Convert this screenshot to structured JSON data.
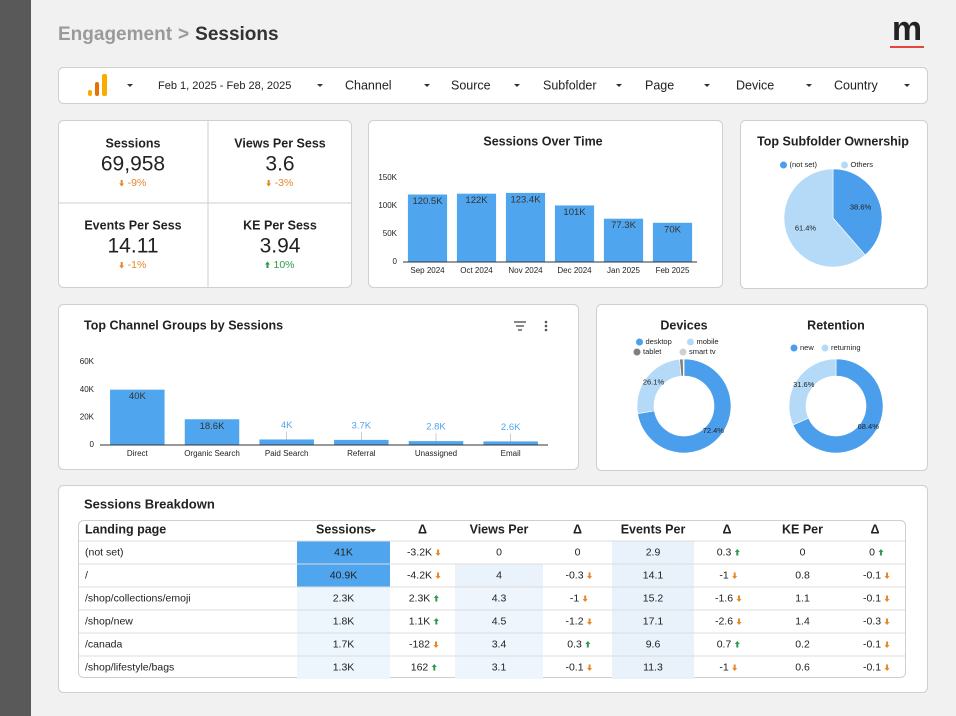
{
  "header": {
    "breadcrumb": [
      "Engagement",
      "Sessions"
    ],
    "separator": ">",
    "logo": "m"
  },
  "filters": [
    "Feb 1, 2025 - Feb 28, 2025",
    "Channel",
    "Source",
    "Subfolder",
    "Page",
    "Device",
    "Country"
  ],
  "kpis": [
    {
      "label": "Sessions",
      "value": "69,958",
      "change": "-9%",
      "trend": "down"
    },
    {
      "label": "Views Per Sess",
      "value": "3.6",
      "change": "-3%",
      "trend": "down"
    },
    {
      "label": "Events Per Sess",
      "value": "14.11",
      "change": "-1%",
      "trend": "down"
    },
    {
      "label": "KE Per Sess",
      "value": "3.94",
      "change": "10%",
      "trend": "up"
    }
  ],
  "chart_data": [
    {
      "type": "bar",
      "title": "Sessions Over Time",
      "categories": [
        "Sep 2024",
        "Oct 2024",
        "Nov 2024",
        "Dec 2024",
        "Jan 2025",
        "Feb 2025"
      ],
      "values": [
        120500,
        122000,
        123400,
        101000,
        77300,
        70000
      ],
      "value_labels": [
        "120.5K",
        "122K",
        "123.4K",
        "101K",
        "77.3K",
        "70K"
      ],
      "color": "#4fa6ee",
      "ylim": [
        0,
        150000
      ],
      "yticks": [
        0,
        {
          "value": 50000,
          "label": "50K"
        },
        {
          "value": 100000,
          "label": "100K"
        },
        {
          "value": 150000,
          "label": "150K"
        }
      ],
      "grid": false
    },
    {
      "type": "pie",
      "title": "Top Subfolder Ownership",
      "categories": [
        "(not set)",
        "Others"
      ],
      "values": [
        38.6,
        61.4
      ],
      "value_labels": [
        "38.6%",
        "61.4%"
      ],
      "colors": [
        "#4a9eec",
        "#b4daf8"
      ]
    },
    {
      "type": "bar",
      "title": "Top Channel Groups by Sessions",
      "categories": [
        "Direct",
        "Organic Search",
        "Paid Search",
        "Referral",
        "Unassigned",
        "Email"
      ],
      "values": [
        40000,
        18600,
        4000,
        3700,
        2800,
        2600
      ],
      "value_labels": [
        "40K",
        "18.6K",
        "4K",
        "3.7K",
        "2.8K",
        "2.6K"
      ],
      "color": "#4fa6ee",
      "ylim": [
        0,
        60000
      ],
      "yticks": [
        0,
        {
          "value": 20000,
          "label": "20K"
        },
        {
          "value": 40000,
          "label": "40K"
        },
        {
          "value": 60000,
          "label": "60K"
        }
      ],
      "grid": false
    },
    {
      "type": "donut",
      "title": "Devices",
      "categories": [
        "desktop",
        "mobile",
        "tablet",
        "smart tv"
      ],
      "values": [
        72.4,
        26.1,
        1.2,
        0.3
      ],
      "value_labels": [
        "72.4%",
        "26.1%",
        null,
        null
      ],
      "colors": [
        "#4a9eec",
        "#b4daf8",
        "#7f7f7f",
        "#d0d0d0"
      ]
    },
    {
      "type": "donut",
      "title": "Retention",
      "categories": [
        "new",
        "returning"
      ],
      "values": [
        68.4,
        31.6
      ],
      "value_labels": [
        "68.4%",
        "31.6%"
      ],
      "colors": [
        "#4a9eec",
        "#b4daf8"
      ]
    }
  ],
  "table": {
    "title": "Sessions Breakdown",
    "headers": [
      "Landing page",
      "Sessions",
      "Δ",
      "Views Per",
      "Δ",
      "Events Per",
      "Δ",
      "KE Per",
      "Δ"
    ],
    "rows": [
      [
        "(not set)",
        "41K",
        "-3.2K",
        "0",
        "0",
        "2.9",
        "0.3",
        "0",
        "0"
      ],
      [
        "/",
        "40.9K",
        "-4.2K",
        "4",
        "-0.3",
        "14.1",
        "-1",
        "0.8",
        "-0.1"
      ],
      [
        "/shop/collections/emoji",
        "2.3K",
        "2.3K",
        "4.3",
        "-1",
        "15.2",
        "-1.6",
        "1.1",
        "-0.1"
      ],
      [
        "/shop/new",
        "1.8K",
        "1.1K",
        "4.5",
        "-1.2",
        "17.1",
        "-2.6",
        "1.4",
        "-0.3"
      ],
      [
        "/canada",
        "1.7K",
        "-182",
        "3.4",
        "0.3",
        "9.6",
        "0.7",
        "0.2",
        "-0.1"
      ],
      [
        "/shop/lifestyle/bags",
        "1.3K",
        "162",
        "3.1",
        "-0.1",
        "11.3",
        "-1",
        "0.6",
        "-0.1"
      ]
    ],
    "trends": [
      [
        null,
        null,
        "down",
        null,
        null,
        null,
        "up",
        null,
        "up"
      ],
      [
        null,
        null,
        "down",
        null,
        "down",
        null,
        "down",
        null,
        "down"
      ],
      [
        null,
        null,
        "up",
        null,
        "down",
        null,
        "down",
        null,
        "down"
      ],
      [
        null,
        null,
        "up",
        null,
        "down",
        null,
        "down",
        null,
        "down"
      ],
      [
        null,
        null,
        "down",
        null,
        "up",
        null,
        "up",
        null,
        "down"
      ],
      [
        null,
        null,
        "up",
        null,
        "down",
        null,
        "down",
        null,
        "down"
      ]
    ],
    "cell_fills": [
      [
        null,
        "#4fa6ee",
        null,
        "#ffffff",
        null,
        "#e9f2fb",
        null,
        null,
        null
      ],
      [
        null,
        "#4fa6ee",
        null,
        "#eaf3fc",
        null,
        "#e9f2fb",
        null,
        null,
        null
      ],
      [
        null,
        "#eef6fd",
        null,
        "#eef5fc",
        null,
        "#e9f2fb",
        null,
        null,
        null
      ],
      [
        null,
        "#eef6fd",
        null,
        "#eef5fc",
        null,
        "#e9f2fb",
        null,
        null,
        null
      ],
      [
        null,
        "#eef6fd",
        null,
        "#eef5fc",
        null,
        "#e9f2fb",
        null,
        null,
        null
      ],
      [
        null,
        "#eef6fd",
        null,
        "#eef5fc",
        null,
        "#e9f2fb",
        null,
        null,
        null
      ]
    ]
  }
}
